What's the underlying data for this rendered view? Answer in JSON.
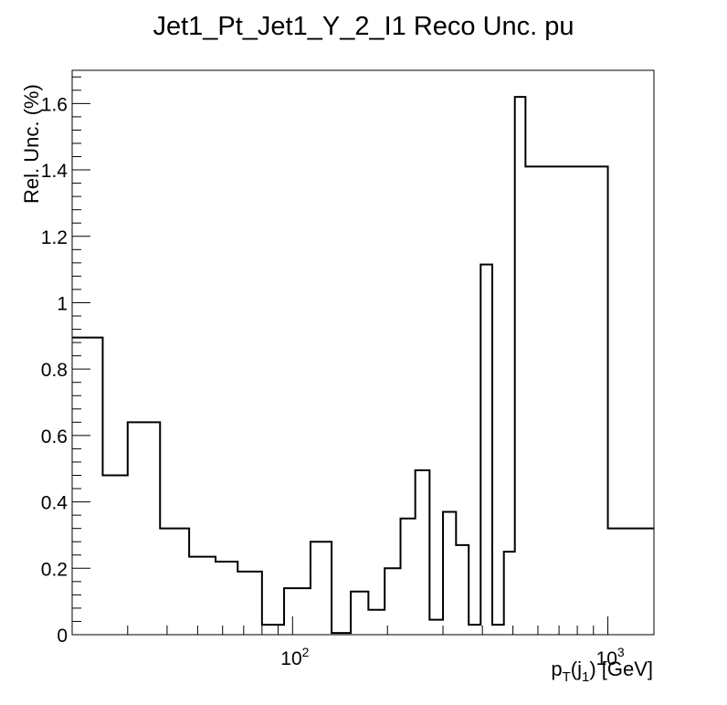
{
  "chart_data": {
    "type": "step",
    "title": "Jet1_Pt_Jet1_Y_2_I1 Reco Unc. pu",
    "xlabel": {
      "base": "p",
      "sub1": "T",
      "mid": "(j",
      "sub2": "1",
      "tail": ") [GeV]"
    },
    "ylabel": "Rel. Unc. (%)",
    "x_scale": "log",
    "xlim": [
      20,
      1400
    ],
    "ylim": [
      0,
      1.7
    ],
    "x_ticks": [
      {
        "value": 100,
        "label": "10",
        "sup": "2"
      },
      {
        "value": 1000,
        "label": "10",
        "sup": "3"
      }
    ],
    "y_ticks": [
      {
        "value": 0,
        "label": "0"
      },
      {
        "value": 0.2,
        "label": "0.2"
      },
      {
        "value": 0.4,
        "label": "0.4"
      },
      {
        "value": 0.6,
        "label": "0.6"
      },
      {
        "value": 0.8,
        "label": "0.8"
      },
      {
        "value": 1.0,
        "label": "1"
      },
      {
        "value": 1.2,
        "label": "1.2"
      },
      {
        "value": 1.4,
        "label": "1.4"
      },
      {
        "value": 1.6,
        "label": "1.6"
      }
    ],
    "bin_edges": [
      20,
      25,
      30,
      38,
      47,
      57,
      67,
      80,
      94,
      114,
      133,
      153,
      174,
      196,
      220,
      245,
      272,
      300,
      330,
      362,
      395,
      430,
      468,
      507,
      548,
      592,
      638,
      1000,
      1400
    ],
    "values": [
      0.895,
      0.48,
      0.64,
      0.32,
      0.235,
      0.22,
      0.19,
      0.03,
      0.14,
      0.28,
      0.005,
      0.13,
      0.075,
      0.2,
      0.35,
      0.495,
      0.045,
      0.37,
      0.27,
      0.03,
      1.115,
      0.03,
      0.25,
      1.62,
      1.41,
      1.41,
      1.41,
      0.32
    ]
  }
}
